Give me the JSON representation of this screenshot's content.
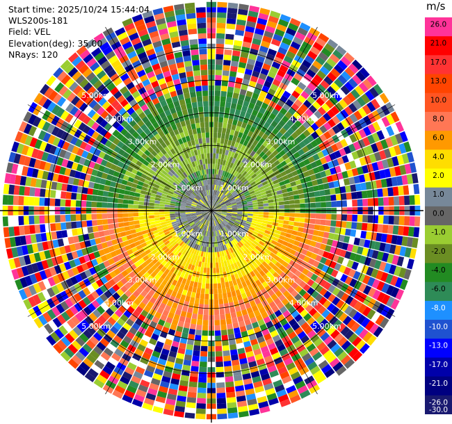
{
  "header": {
    "start_time": "Start time: 2025/10/24 15:44:04",
    "instrument": "WLS200s-181",
    "field": "Field: VEL",
    "elevation": "Elevation(deg): 35.00",
    "nrays": "NRays: 120"
  },
  "colorbar": {
    "unit": "m/s",
    "bins": [
      {
        "label": "26.0",
        "color": "#ff3399"
      },
      {
        "label": "21.0",
        "color": "#ff0000"
      },
      {
        "label": "17.0",
        "color": "#ff3333"
      },
      {
        "label": "13.0",
        "color": "#ff4400"
      },
      {
        "label": "10.0",
        "color": "#ff5522"
      },
      {
        "label": "8.0",
        "color": "#ff7755"
      },
      {
        "label": "6.0",
        "color": "#ff9900"
      },
      {
        "label": "4.0",
        "color": "#ffdd00"
      },
      {
        "label": "2.0",
        "color": "#ffff00"
      },
      {
        "label": "1.0",
        "color": "#778899"
      },
      {
        "label": "0.0",
        "color": "#666666"
      },
      {
        "label": "-1.0",
        "color": "#9acd32"
      },
      {
        "label": "-2.0",
        "color": "#6b8e23"
      },
      {
        "label": "-4.0",
        "color": "#228b22"
      },
      {
        "label": "-6.0",
        "color": "#2e8b57"
      },
      {
        "label": "-8.0",
        "color": "#1e90ff"
      },
      {
        "label": "-10.0",
        "color": "#1f52d0"
      },
      {
        "label": "-13.0",
        "color": "#0000ff"
      },
      {
        "label": "-17.0",
        "color": "#0000aa"
      },
      {
        "label": "-21.0",
        "color": "#000080"
      },
      {
        "label": "-26.0",
        "color": "#191970"
      },
      {
        "label": "-30.0",
        "color": ""
      }
    ]
  },
  "chart_data": {
    "type": "heatmap",
    "projection": "polar PPI",
    "field": "VEL",
    "elevation_deg": 35.0,
    "n_rays": 120,
    "range_unit": "km",
    "range_rings_km": [
      1.0,
      2.0,
      3.0,
      4.0,
      5.0
    ],
    "max_range_km": 6.5,
    "ring_labels": [
      "1.00km",
      "2.00km",
      "3.00km",
      "4.00km",
      "5.00km"
    ],
    "azimuth_lines_deg": [
      0,
      30,
      60,
      90,
      120,
      150,
      180,
      210,
      240,
      270,
      300,
      330
    ],
    "value_range_ms": [
      -30.0,
      26.0
    ],
    "regions": [
      {
        "range_km": [
          0.0,
          1.3
        ],
        "approx_value_ms": 0.0,
        "description": "near-zero velocity core (gray)"
      },
      {
        "sector": "north",
        "range_km": [
          1.3,
          3.8
        ],
        "approx_value_ms": -4.0,
        "description": "approaching flow (greens)"
      },
      {
        "sector": "south",
        "range_km": [
          1.3,
          3.8
        ],
        "approx_value_ms": 6.0,
        "description": "receding flow (yellows/oranges)"
      },
      {
        "range_km": [
          3.8,
          6.5
        ],
        "approx_value_ms": null,
        "description": "noisy / unreliable far range"
      }
    ]
  }
}
